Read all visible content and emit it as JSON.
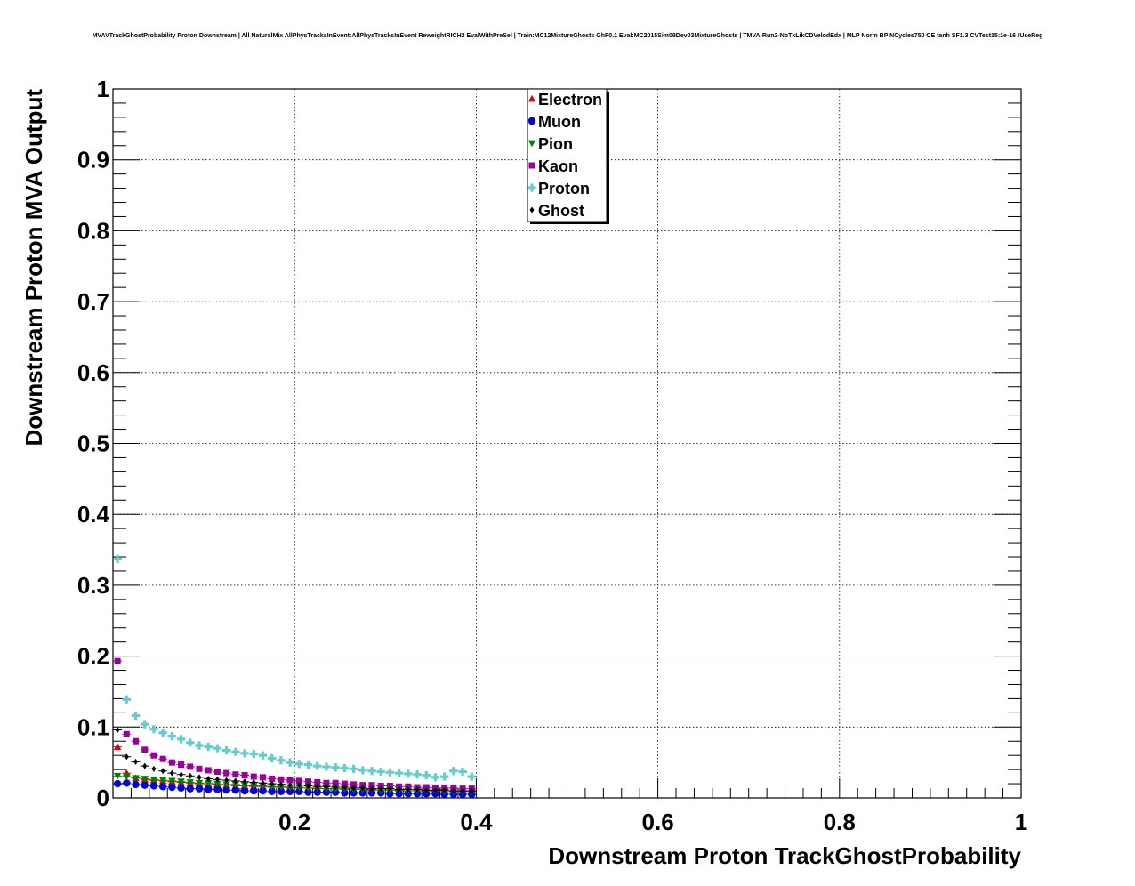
{
  "chart_data": {
    "type": "scatter",
    "title": "MVAVTrackGhostProbability Proton Downstream | All NaturalMix AllPhysTracksInEvent:AllPhysTracksInEvent ReweightRICH2 EvalWithPreSel | Train:MC12MixtureGhosts GhF0.1 Eval:MC2015Sim09Dev03MixtureGhosts | TMVA-Run2-NoTkLikCDVelodEdx | MLP Norm BP NCycles750 CE tanh SF1.3 CVTest15:1e-16 !UseReg",
    "xlabel": "Downstream Proton TrackGhostProbability",
    "ylabel": "Downstream Proton MVA Output",
    "xlim": [
      0,
      1.0
    ],
    "ylim": [
      0,
      1.0
    ],
    "x_ticks": [
      "0.2",
      "0.4",
      "0.6",
      "0.8",
      "1"
    ],
    "y_ticks": [
      "0",
      "0.1",
      "0.2",
      "0.3",
      "0.4",
      "0.5",
      "0.6",
      "0.7",
      "0.8",
      "0.9",
      "1"
    ],
    "grid": true,
    "legend_position": "top-center",
    "x": [
      0.005,
      0.015,
      0.025,
      0.035,
      0.045,
      0.055,
      0.065,
      0.075,
      0.085,
      0.095,
      0.105,
      0.115,
      0.125,
      0.135,
      0.145,
      0.155,
      0.165,
      0.175,
      0.185,
      0.195,
      0.205,
      0.215,
      0.225,
      0.235,
      0.245,
      0.255,
      0.265,
      0.275,
      0.285,
      0.295,
      0.305,
      0.315,
      0.325,
      0.335,
      0.345,
      0.355,
      0.365,
      0.375,
      0.385,
      0.395
    ],
    "series": [
      {
        "name": "Electron",
        "color": "#e00000",
        "marker": "triangle-up",
        "values": [
          0.072,
          0.035,
          0.028,
          0.026,
          0.025,
          0.024,
          0.023,
          0.022,
          0.021,
          0.02,
          0.019,
          0.019,
          0.018,
          0.017,
          0.017,
          0.016,
          0.016,
          0.015,
          0.015,
          0.014,
          0.014,
          0.014,
          0.013,
          0.013,
          0.013,
          0.012,
          0.012,
          0.012,
          0.011,
          0.011,
          0.011,
          0.01,
          0.01,
          0.01,
          0.01,
          0.009,
          0.012,
          0.009,
          0.01,
          0.009
        ]
      },
      {
        "name": "Muon",
        "color": "#0000e0",
        "marker": "circle",
        "values": [
          0.02,
          0.021,
          0.019,
          0.018,
          0.017,
          0.016,
          0.015,
          0.014,
          0.013,
          0.013,
          0.012,
          0.012,
          0.011,
          0.011,
          0.01,
          0.01,
          0.01,
          0.009,
          0.009,
          0.009,
          0.009,
          0.008,
          0.008,
          0.008,
          0.008,
          0.007,
          0.007,
          0.007,
          0.007,
          0.007,
          0.006,
          0.006,
          0.006,
          0.006,
          0.006,
          0.006,
          0.005,
          0.005,
          0.005,
          0.005
        ]
      },
      {
        "name": "Pion",
        "color": "#008000",
        "marker": "triangle-down",
        "values": [
          0.031,
          0.03,
          0.028,
          0.027,
          0.026,
          0.025,
          0.024,
          0.023,
          0.022,
          0.021,
          0.021,
          0.02,
          0.019,
          0.019,
          0.018,
          0.017,
          0.017,
          0.016,
          0.016,
          0.015,
          0.015,
          0.014,
          0.014,
          0.013,
          0.013,
          0.013,
          0.012,
          0.012,
          0.012,
          0.011,
          0.011,
          0.011,
          0.01,
          0.01,
          0.01,
          0.01,
          0.009,
          0.009,
          0.009,
          0.009
        ]
      },
      {
        "name": "Kaon",
        "color": "#990099",
        "marker": "square",
        "values": [
          0.193,
          0.09,
          0.08,
          0.068,
          0.06,
          0.055,
          0.05,
          0.047,
          0.044,
          0.041,
          0.039,
          0.037,
          0.035,
          0.033,
          0.032,
          0.03,
          0.029,
          0.027,
          0.026,
          0.025,
          0.024,
          0.023,
          0.022,
          0.021,
          0.021,
          0.02,
          0.019,
          0.018,
          0.018,
          0.017,
          0.017,
          0.016,
          0.016,
          0.015,
          0.015,
          0.014,
          0.014,
          0.014,
          0.013,
          0.013
        ]
      },
      {
        "name": "Proton",
        "color": "#66cccc",
        "marker": "cross",
        "values": [
          0.337,
          0.139,
          0.116,
          0.104,
          0.097,
          0.092,
          0.087,
          0.083,
          0.078,
          0.074,
          0.072,
          0.07,
          0.067,
          0.065,
          0.063,
          0.062,
          0.06,
          0.056,
          0.053,
          0.05,
          0.048,
          0.047,
          0.045,
          0.044,
          0.043,
          0.042,
          0.041,
          0.039,
          0.038,
          0.037,
          0.036,
          0.035,
          0.034,
          0.033,
          0.032,
          0.029,
          0.03,
          0.038,
          0.037,
          0.03
        ]
      },
      {
        "name": "Ghost",
        "color": "#000000",
        "marker": "diamond",
        "values": [
          0.096,
          0.058,
          0.051,
          0.045,
          0.041,
          0.038,
          0.035,
          0.033,
          0.031,
          0.029,
          0.027,
          0.026,
          0.025,
          0.024,
          0.023,
          0.022,
          0.021,
          0.02,
          0.019,
          0.018,
          0.018,
          0.017,
          0.016,
          0.016,
          0.015,
          0.015,
          0.014,
          0.014,
          0.013,
          0.013,
          0.013,
          0.012,
          0.012,
          0.012,
          0.011,
          0.011,
          0.011,
          0.01,
          0.01,
          0.01
        ]
      }
    ]
  }
}
